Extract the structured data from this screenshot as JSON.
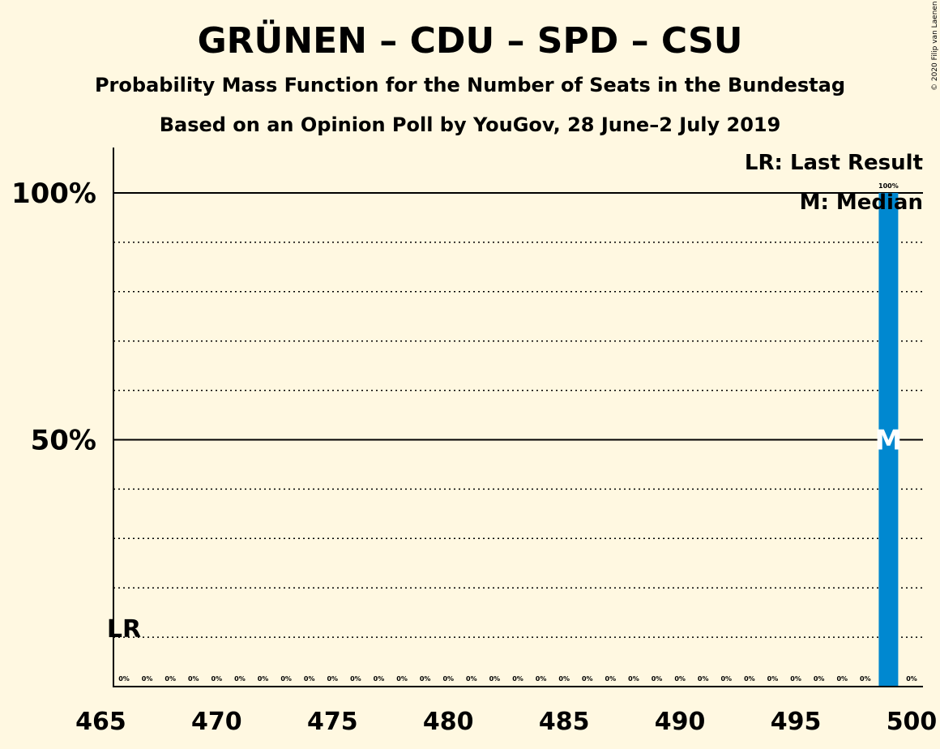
{
  "chart_data": {
    "type": "bar",
    "title": "GRÜNEN – CDU – SPD – CSU",
    "subtitle": "Probability Mass Function for the Number of Seats in the Bundestag",
    "subtitle2": "Based on an Opinion Poll by YouGov, 28 June–2 July 2019",
    "copyright": "© 2020 Filip van Laenen",
    "legend": {
      "lr": "LR: Last Result",
      "median": "M: Median",
      "placement": "top-right"
    },
    "x": [
      466,
      467,
      468,
      469,
      470,
      471,
      472,
      473,
      474,
      475,
      476,
      477,
      478,
      479,
      480,
      481,
      482,
      483,
      484,
      485,
      486,
      487,
      488,
      489,
      490,
      491,
      492,
      493,
      494,
      495,
      496,
      497,
      498,
      499,
      500
    ],
    "values": [
      0,
      0,
      0,
      0,
      0,
      0,
      0,
      0,
      0,
      0,
      0,
      0,
      0,
      0,
      0,
      0,
      0,
      0,
      0,
      0,
      0,
      0,
      0,
      0,
      0,
      0,
      0,
      0,
      0,
      0,
      0,
      0,
      0,
      100,
      0
    ],
    "data_labels": [
      "0%",
      "0%",
      "0%",
      "0%",
      "0%",
      "0%",
      "0%",
      "0%",
      "0%",
      "0%",
      "0%",
      "0%",
      "0%",
      "0%",
      "0%",
      "0%",
      "0%",
      "0%",
      "0%",
      "0%",
      "0%",
      "0%",
      "0%",
      "0%",
      "0%",
      "0%",
      "0%",
      "0%",
      "0%",
      "0%",
      "0%",
      "0%",
      "0%",
      "100%",
      "0%"
    ],
    "xlim": [
      465,
      500
    ],
    "ylim": [
      0,
      110
    ],
    "xticks": [
      465,
      470,
      475,
      480,
      485,
      490,
      495,
      500
    ],
    "xtick_labels": [
      "465",
      "470",
      "475",
      "480",
      "485",
      "490",
      "495",
      "500"
    ],
    "yticks_major": [
      50,
      100
    ],
    "ytick_labels": [
      "50%",
      "100%"
    ],
    "yticks_minor": [
      10,
      20,
      30,
      40,
      60,
      70,
      80,
      90
    ],
    "last_result": {
      "x": 466,
      "label": "LR"
    },
    "median": {
      "x": 499,
      "label": "M"
    },
    "bar_color": "#0088D0",
    "background_color": "#FFF8E1"
  }
}
